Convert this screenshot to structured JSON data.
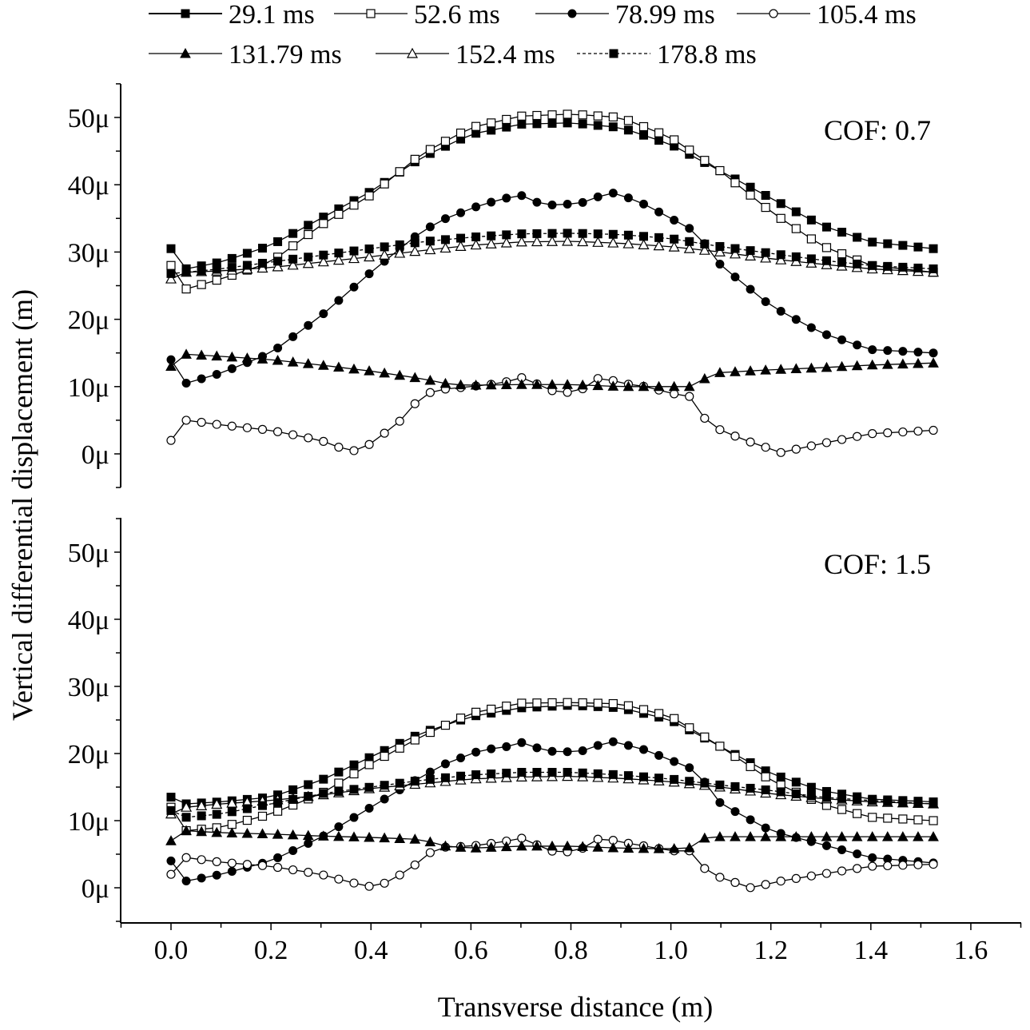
{
  "chart_data": {
    "type": "line",
    "xlabel": "Transverse distance (m)",
    "ylabel": "Vertical differential displacement (m)",
    "xlim": [
      -0.08,
      1.7
    ],
    "x_ticks": [
      "0.0",
      "0.2",
      "0.4",
      "0.6",
      "0.8",
      "1.0",
      "1.2",
      "1.4",
      "1.6"
    ],
    "x_tick_values": [
      0.0,
      0.2,
      0.4,
      0.6,
      0.8,
      1.0,
      1.2,
      1.4,
      1.6
    ],
    "legend_position": "top",
    "legend": [
      {
        "name": "29.1 ms",
        "marker": "filled-square",
        "line": "solid"
      },
      {
        "name": "52.6 ms",
        "marker": "open-square",
        "line": "solid"
      },
      {
        "name": "78.99 ms",
        "marker": "filled-circle",
        "line": "solid"
      },
      {
        "name": "105.4 ms",
        "marker": "open-circle",
        "line": "solid"
      },
      {
        "name": "131.79 ms",
        "marker": "filled-triangle",
        "line": "solid"
      },
      {
        "name": "152.4 ms",
        "marker": "open-triangle",
        "line": "solid"
      },
      {
        "name": "178.8 ms",
        "marker": "filled-square",
        "line": "dashed"
      }
    ],
    "panels": [
      {
        "annotation": "COF: 0.7",
        "ylim": [
          -5,
          55
        ],
        "y_ticks": [
          "0μ",
          "10μ",
          "20μ",
          "30μ",
          "40μ",
          "50μ"
        ],
        "y_tick_values": [
          0,
          10,
          20,
          30,
          40,
          50
        ],
        "y_unit_note": "values in micrometres (μ)",
        "series": [
          {
            "name": "29.1 ms",
            "x": [
              0.0,
              0.03,
              0.1,
              0.2,
              0.3,
              0.4,
              0.5,
              0.6,
              0.7,
              0.8,
              0.9,
              1.0,
              1.1,
              1.2,
              1.3,
              1.4,
              1.525
            ],
            "y": [
              30.5,
              27.5,
              28.5,
              31.0,
              35.0,
              39.0,
              44.0,
              47.5,
              49.0,
              49.2,
              48.5,
              46.0,
              42.0,
              38.0,
              34.0,
              31.5,
              30.5
            ]
          },
          {
            "name": "52.6 ms",
            "x": [
              0.0,
              0.03,
              0.1,
              0.2,
              0.3,
              0.4,
              0.5,
              0.6,
              0.7,
              0.8,
              0.9,
              1.0,
              1.1,
              1.2,
              1.3,
              1.4,
              1.525
            ],
            "y": [
              28.0,
              24.5,
              26.0,
              28.5,
              34.0,
              38.5,
              44.5,
              48.5,
              50.2,
              50.5,
              50.0,
              47.0,
              42.0,
              36.0,
              31.0,
              28.0,
              27.0
            ]
          },
          {
            "name": "78.99 ms",
            "x": [
              0.0,
              0.03,
              0.1,
              0.2,
              0.3,
              0.4,
              0.5,
              0.55,
              0.62,
              0.67,
              0.71,
              0.74,
              0.78,
              0.84,
              0.87,
              0.9,
              0.95,
              1.0,
              1.05,
              1.1,
              1.2,
              1.3,
              1.4,
              1.525
            ],
            "y": [
              14.0,
              10.5,
              12.0,
              15.0,
              20.5,
              27.0,
              33.0,
              35.0,
              37.0,
              38.0,
              38.5,
              37.0,
              37.0,
              37.5,
              39.0,
              38.5,
              37.0,
              35.0,
              33.0,
              28.0,
              22.0,
              18.0,
              15.5,
              15.0
            ]
          },
          {
            "name": "105.4 ms",
            "x": [
              0.0,
              0.03,
              0.1,
              0.2,
              0.3,
              0.36,
              0.4,
              0.46,
              0.5,
              0.53,
              0.6,
              0.66,
              0.71,
              0.75,
              0.81,
              0.86,
              0.9,
              0.95,
              1.0,
              1.04,
              1.07,
              1.1,
              1.15,
              1.22,
              1.3,
              1.4,
              1.525
            ],
            "y": [
              2.0,
              5.0,
              4.3,
              3.5,
              2.0,
              0.3,
              1.5,
              5.0,
              8.5,
              9.5,
              10.0,
              10.5,
              11.5,
              9.5,
              9.0,
              11.5,
              10.5,
              10.0,
              9.0,
              8.5,
              5.0,
              3.5,
              2.0,
              0.2,
              1.5,
              3.0,
              3.5
            ]
          },
          {
            "name": "131.79 ms",
            "x": [
              0.0,
              0.03,
              0.1,
              0.2,
              0.3,
              0.4,
              0.5,
              0.56,
              0.6,
              0.7,
              0.8,
              0.9,
              0.95,
              1.0,
              1.05,
              1.08,
              1.2,
              1.3,
              1.4,
              1.525
            ],
            "y": [
              13.0,
              14.8,
              14.5,
              14.0,
              13.2,
              12.3,
              11.2,
              10.3,
              10.2,
              10.3,
              10.3,
              10.0,
              10.0,
              10.0,
              10.0,
              12.0,
              12.5,
              12.8,
              13.2,
              13.5
            ]
          },
          {
            "name": "152.4 ms",
            "x": [
              0.0,
              0.03,
              0.1,
              0.2,
              0.3,
              0.4,
              0.5,
              0.6,
              0.7,
              0.8,
              0.9,
              1.0,
              1.1,
              1.2,
              1.3,
              1.4,
              1.525
            ],
            "y": [
              26.0,
              27.0,
              27.2,
              27.7,
              28.5,
              29.3,
              30.2,
              31.0,
              31.5,
              31.6,
              31.3,
              30.8,
              30.0,
              29.0,
              28.2,
              27.5,
              27.0
            ]
          },
          {
            "name": "178.8 ms",
            "x": [
              0.0,
              0.03,
              0.1,
              0.2,
              0.3,
              0.4,
              0.5,
              0.6,
              0.7,
              0.8,
              0.9,
              1.0,
              1.1,
              1.2,
              1.3,
              1.4,
              1.525
            ],
            "y": [
              26.8,
              27.0,
              27.5,
              28.5,
              29.5,
              30.5,
              31.5,
              32.2,
              32.7,
              32.8,
              32.6,
              32.0,
              30.8,
              29.8,
              28.8,
              28.0,
              27.5
            ]
          }
        ]
      },
      {
        "annotation": "COF: 1.5",
        "ylim": [
          -5,
          55
        ],
        "y_ticks": [
          "0μ",
          "10μ",
          "20μ",
          "30μ",
          "40μ",
          "50μ"
        ],
        "y_tick_values": [
          0,
          10,
          20,
          30,
          40,
          50
        ],
        "series": [
          {
            "name": "29.1 ms",
            "x": [
              0.0,
              0.03,
              0.1,
              0.2,
              0.3,
              0.4,
              0.5,
              0.6,
              0.7,
              0.8,
              0.9,
              1.0,
              1.1,
              1.2,
              1.3,
              1.4,
              1.525
            ],
            "y": [
              13.5,
              12.5,
              12.8,
              13.5,
              16.0,
              19.5,
              23.0,
              25.5,
              26.8,
              27.2,
              26.8,
              25.0,
              21.0,
              17.0,
              14.5,
              13.2,
              12.8
            ]
          },
          {
            "name": "52.6 ms",
            "x": [
              0.0,
              0.03,
              0.1,
              0.2,
              0.3,
              0.4,
              0.5,
              0.6,
              0.7,
              0.8,
              0.9,
              1.0,
              1.1,
              1.2,
              1.3,
              1.4,
              1.525
            ],
            "y": [
              12.0,
              8.5,
              9.0,
              11.0,
              14.0,
              18.5,
              22.5,
              26.0,
              27.5,
              27.6,
              27.4,
              25.5,
              21.0,
              16.0,
              12.5,
              10.5,
              10.0
            ]
          },
          {
            "name": "78.99 ms",
            "x": [
              0.0,
              0.03,
              0.1,
              0.2,
              0.3,
              0.4,
              0.5,
              0.55,
              0.62,
              0.67,
              0.71,
              0.74,
              0.78,
              0.84,
              0.87,
              0.9,
              0.95,
              1.0,
              1.05,
              1.1,
              1.2,
              1.3,
              1.4,
              1.525
            ],
            "y": [
              4.0,
              1.0,
              2.0,
              4.0,
              7.5,
              12.0,
              16.5,
              18.5,
              20.5,
              21.0,
              21.8,
              20.5,
              20.2,
              20.5,
              22.0,
              21.5,
              20.5,
              19.0,
              17.5,
              12.5,
              8.5,
              6.5,
              4.5,
              3.7
            ]
          },
          {
            "name": "105.4 ms",
            "x": [
              0.0,
              0.03,
              0.1,
              0.2,
              0.3,
              0.36,
              0.41,
              0.46,
              0.5,
              0.53,
              0.6,
              0.66,
              0.71,
              0.75,
              0.81,
              0.86,
              0.9,
              0.95,
              1.0,
              1.05,
              1.07,
              1.1,
              1.16,
              1.22,
              1.3,
              1.4,
              1.525
            ],
            "y": [
              2.0,
              4.5,
              3.8,
              3.2,
              2.0,
              0.8,
              0.0,
              2.0,
              4.0,
              6.0,
              6.2,
              6.8,
              7.5,
              5.5,
              5.3,
              7.5,
              6.8,
              6.2,
              5.5,
              5.5,
              2.5,
              1.5,
              0.0,
              1.0,
              2.0,
              3.2,
              3.5
            ]
          },
          {
            "name": "131.79 ms",
            "x": [
              0.0,
              0.03,
              0.1,
              0.2,
              0.3,
              0.4,
              0.5,
              0.55,
              0.6,
              0.7,
              0.8,
              0.9,
              1.0,
              1.05,
              1.07,
              1.2,
              1.3,
              1.4,
              1.525
            ],
            "y": [
              7.0,
              8.5,
              8.2,
              8.0,
              7.7,
              7.5,
              7.2,
              6.2,
              5.9,
              6.2,
              6.2,
              5.9,
              5.8,
              6.0,
              7.6,
              7.6,
              7.6,
              7.6,
              7.6
            ]
          },
          {
            "name": "152.4 ms",
            "x": [
              0.0,
              0.03,
              0.1,
              0.2,
              0.3,
              0.4,
              0.5,
              0.6,
              0.7,
              0.8,
              0.9,
              1.0,
              1.1,
              1.2,
              1.3,
              1.4,
              1.525
            ],
            "y": [
              11.0,
              12.0,
              12.5,
              13.0,
              13.8,
              14.8,
              15.5,
              16.2,
              16.5,
              16.6,
              16.3,
              15.8,
              15.0,
              14.0,
              13.3,
              12.8,
              12.5
            ]
          },
          {
            "name": "178.8 ms",
            "x": [
              0.0,
              0.03,
              0.1,
              0.2,
              0.3,
              0.4,
              0.5,
              0.6,
              0.7,
              0.8,
              0.9,
              1.0,
              1.1,
              1.2,
              1.3,
              1.4,
              1.525
            ],
            "y": [
              11.5,
              10.5,
              11.0,
              12.5,
              14.0,
              15.0,
              16.0,
              16.8,
              17.2,
              17.2,
              16.8,
              16.2,
              15.3,
              14.5,
              13.5,
              13.0,
              12.5
            ]
          }
        ]
      }
    ]
  }
}
